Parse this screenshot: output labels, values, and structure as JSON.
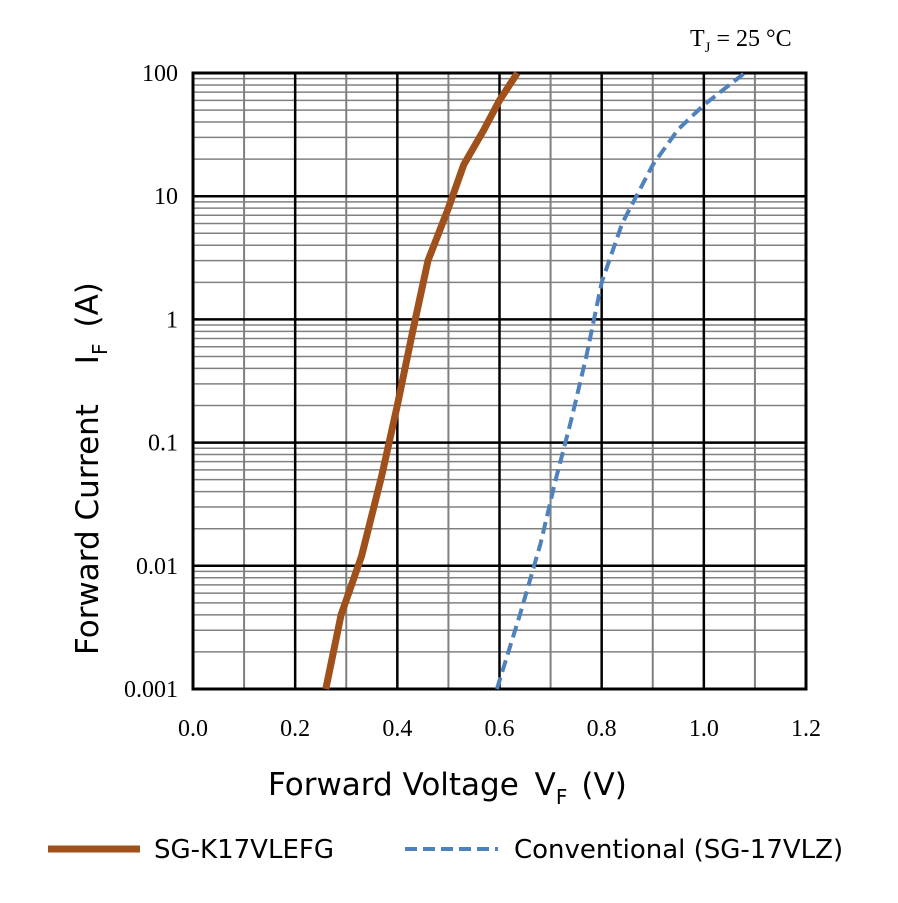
{
  "chart_data": {
    "type": "line",
    "title": "",
    "condition": {
      "main": "T",
      "sub": "J",
      "rest": " = 25 °C"
    },
    "xlabel": {
      "main": "Forward Voltage ",
      "symbol": "V",
      "sub": "F",
      "unit": "(V)"
    },
    "ylabel": {
      "main": "Forward Current ",
      "symbol": "I",
      "sub": "F",
      "unit": "(A)"
    },
    "x_scale": "linear",
    "y_scale": "log",
    "xlim": [
      0.0,
      1.2
    ],
    "ylim": [
      0.001,
      100
    ],
    "x_ticks": [
      "0.0",
      "0.2",
      "0.4",
      "0.6",
      "0.8",
      "1.0",
      "1.2"
    ],
    "y_ticks": [
      "0.001",
      "0.01",
      "0.1",
      "1",
      "10",
      "100"
    ],
    "grid": true,
    "legend_position": "bottom",
    "series": [
      {
        "name": "SG-K17VLEFG",
        "color": "#a0501a",
        "style": "solid",
        "points": [
          [
            0.26,
            0.001
          ],
          [
            0.29,
            0.004
          ],
          [
            0.33,
            0.012
          ],
          [
            0.37,
            0.055
          ],
          [
            0.4,
            0.2
          ],
          [
            0.43,
            0.8
          ],
          [
            0.46,
            3.0
          ],
          [
            0.5,
            8.0
          ],
          [
            0.53,
            18.0
          ],
          [
            0.57,
            35.0
          ],
          [
            0.6,
            60.0
          ],
          [
            0.635,
            100.0
          ]
        ]
      },
      {
        "name": "Conventional (SG-17VLZ)",
        "color": "#4f81bd",
        "style": "dashed",
        "points": [
          [
            0.595,
            0.001
          ],
          [
            0.64,
            0.004
          ],
          [
            0.68,
            0.015
          ],
          [
            0.71,
            0.05
          ],
          [
            0.74,
            0.15
          ],
          [
            0.77,
            0.5
          ],
          [
            0.8,
            2.0
          ],
          [
            0.84,
            6.0
          ],
          [
            0.9,
            18.0
          ],
          [
            0.95,
            35.0
          ],
          [
            1.0,
            55.0
          ],
          [
            1.08,
            100.0
          ]
        ]
      }
    ]
  }
}
